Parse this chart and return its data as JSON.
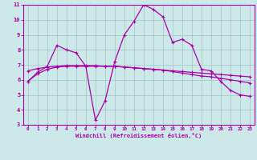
{
  "xlabel": "Windchill (Refroidissement éolien,°C)",
  "xlim": [
    -0.5,
    23.5
  ],
  "ylim": [
    3,
    11
  ],
  "xticks": [
    0,
    1,
    2,
    3,
    4,
    5,
    6,
    7,
    8,
    9,
    10,
    11,
    12,
    13,
    14,
    15,
    16,
    17,
    18,
    19,
    20,
    21,
    22,
    23
  ],
  "yticks": [
    3,
    4,
    5,
    6,
    7,
    8,
    9,
    10,
    11
  ],
  "background_color": "#cce8e8",
  "grid_color": "#aacccc",
  "line_color": "#aa00aa",
  "line1_x": [
    0,
    1,
    2,
    3,
    4,
    5,
    6,
    7,
    8,
    9,
    10,
    11,
    12,
    13,
    14,
    15,
    16,
    17,
    18,
    19,
    20,
    21,
    22,
    23
  ],
  "line1_y": [
    5.9,
    6.5,
    6.9,
    8.3,
    8.0,
    7.8,
    6.9,
    3.3,
    4.6,
    7.2,
    9.0,
    9.9,
    11.0,
    10.7,
    10.2,
    8.5,
    8.7,
    8.3,
    6.7,
    6.6,
    5.9,
    5.3,
    5.0,
    4.9
  ],
  "line2_x": [
    0,
    1,
    2,
    3,
    4,
    5,
    6,
    7,
    8,
    9,
    10,
    11,
    12,
    13,
    14,
    15,
    16,
    17,
    18,
    19,
    20,
    21,
    22,
    23
  ],
  "line2_y": [
    6.6,
    6.75,
    6.85,
    6.9,
    6.95,
    6.95,
    6.95,
    6.95,
    6.9,
    6.9,
    6.85,
    6.8,
    6.75,
    6.7,
    6.65,
    6.6,
    6.55,
    6.5,
    6.45,
    6.4,
    6.35,
    6.3,
    6.25,
    6.2
  ],
  "line3_x": [
    0,
    1,
    2,
    3,
    4,
    5,
    6,
    7,
    8,
    9,
    10,
    11,
    12,
    13,
    14,
    15,
    16,
    17,
    18,
    19,
    20,
    21,
    22,
    23
  ],
  "line3_y": [
    5.9,
    6.4,
    6.7,
    6.85,
    6.9,
    6.9,
    6.9,
    6.9,
    6.9,
    6.9,
    6.85,
    6.8,
    6.75,
    6.7,
    6.65,
    6.55,
    6.45,
    6.35,
    6.25,
    6.2,
    6.1,
    6.0,
    5.9,
    5.8
  ]
}
